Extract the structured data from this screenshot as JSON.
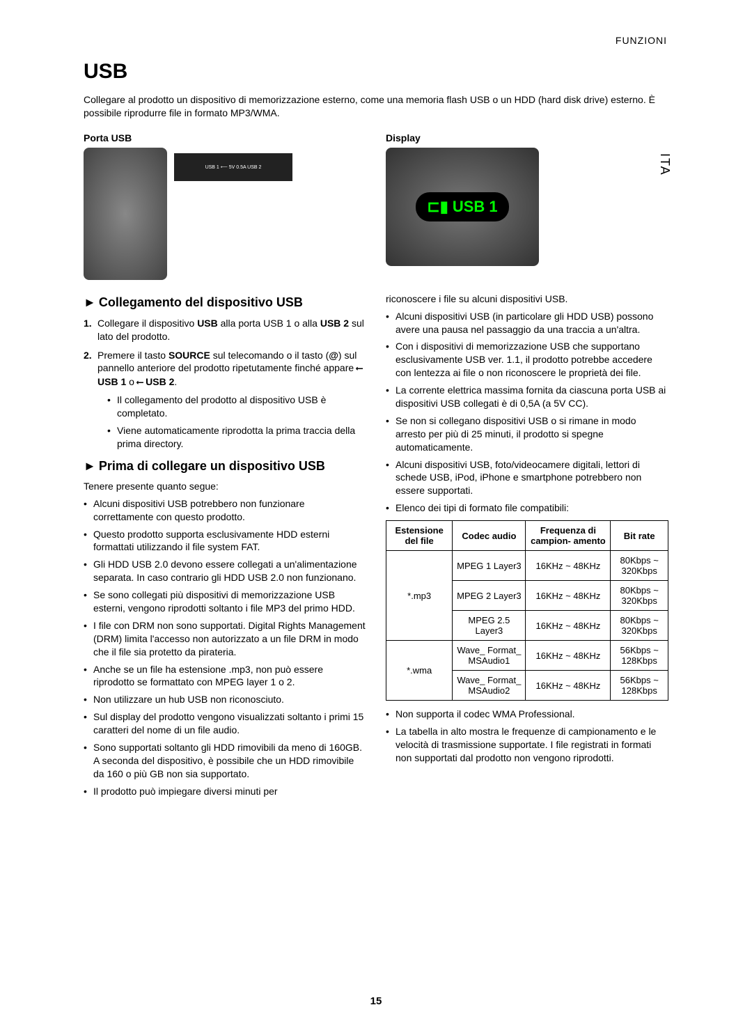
{
  "header": {
    "section_label": "FUNZIONI"
  },
  "side_tab": "ITA",
  "title": "USB",
  "intro": "Collegare al prodotto un dispositivo di memorizzazione esterno, come una memoria flash USB o un HDD (hard disk drive) esterno. È possibile riprodurre file in formato MP3/WMA.",
  "figures": {
    "left_label": "Porta USB",
    "left_panel_text": "USB 1 ⟵ 5V 0.5A  USB 2",
    "right_label": "Display",
    "display_text": "USB 1"
  },
  "section_connect": {
    "title": "Collegamento del dispositivo USB",
    "items": [
      {
        "num": "1.",
        "html": "Collegare il dispositivo <b>USB</b> alla porta USB 1 o alla <b>USB 2</b> sul lato del prodotto."
      },
      {
        "num": "2.",
        "html": "Premere il tasto <b>SOURCE</b> sul telecomando o il tasto (<b>@</b>) sul pannello anteriore del prodotto ripetutamente finché appare <span class='usb-icon'>⟵</span> <b>USB 1</b> o <span class='usb-icon'>⟵</span> <b>USB 2</b>."
      }
    ],
    "sub_items": [
      "Il collegamento del prodotto al dispositivo USB è completato.",
      "Viene automaticamente riprodotta la prima traccia della prima directory."
    ]
  },
  "section_before": {
    "title": "Prima di collegare un dispositivo USB",
    "lead": "Tenere presente quanto segue:",
    "bullets_left": [
      "Alcuni dispositivi USB potrebbero non funzionare correttamente con questo prodotto.",
      "Questo prodotto supporta esclusivamente HDD esterni formattati utilizzando il file system FAT.",
      "Gli HDD USB 2.0 devono essere collegati a un'alimentazione separata. In caso contrario gli HDD USB 2.0 non funzionano.",
      "Se sono collegati più dispositivi di memorizzazione USB esterni, vengono riprodotti soltanto i file MP3 del primo HDD.",
      "I file con DRM non sono supportati. Digital Rights Management (DRM) limita l'accesso non autorizzato a un file DRM in modo che il file sia protetto da pirateria.",
      "Anche se un file ha estensione .mp3, non può essere riprodotto se formattato con MPEG layer 1 o 2.",
      "Non utilizzare un hub USB non riconosciuto.",
      "Sul display del prodotto vengono visualizzati soltanto i primi 15 caratteri del nome di un file audio.",
      "Sono supportati soltanto gli HDD rimovibili da meno di 160GB. A seconda del dispositivo, è possibile che un HDD rimovibile da 160 o più GB non sia supportato.",
      "Il prodotto può impiegare diversi minuti per"
    ],
    "bullets_right_top": [
      "riconoscere i file su alcuni dispositivi USB.",
      "Alcuni dispositivi USB (in particolare gli HDD USB) possono avere una pausa nel passaggio da una traccia a un'altra.",
      "Con i dispositivi di memorizzazione USB che supportano esclusivamente USB ver. 1.1, il prodotto potrebbe accedere con lentezza ai file o non riconoscere le proprietà dei file.",
      "La corrente elettrica massima fornita da ciascuna porta USB ai dispositivi USB collegati è di 0,5A (a 5V CC).",
      "Se non si collegano dispositivi USB o si rimane in modo arresto per più di 25 minuti, il prodotto si spegne automaticamente.",
      "Alcuni dispositivi USB, foto/videocamere digitali, lettori di schede USB, iPod, iPhone e smartphone potrebbero non essere supportati.",
      "Elenco dei tipi di formato file compatibili:"
    ],
    "bullets_right_bottom": [
      "Non supporta il codec WMA Professional.",
      "La tabella in alto mostra le frequenze di campionamento e le velocità di trasmissione supportate. I file registrati in formati non supportati dal prodotto non vengono riprodotti."
    ]
  },
  "table": {
    "headers": [
      "Estensione del file",
      "Codec audio",
      "Frequenza di campion- amento",
      "Bit rate"
    ],
    "rows": [
      {
        "ext": "*.mp3",
        "codec": "MPEG 1 Layer3",
        "freq": "16KHz ~ 48KHz",
        "bitrate": "80Kbps ~ 320Kbps"
      },
      {
        "ext": "",
        "codec": "MPEG 2 Layer3",
        "freq": "16KHz ~ 48KHz",
        "bitrate": "80Kbps ~ 320Kbps"
      },
      {
        "ext": "",
        "codec": "MPEG 2.5 Layer3",
        "freq": "16KHz ~ 48KHz",
        "bitrate": "80Kbps ~ 320Kbps"
      },
      {
        "ext": "*.wma",
        "codec": "Wave_ Format_ MSAudio1",
        "freq": "16KHz ~ 48KHz",
        "bitrate": "56Kbps ~ 128Kbps"
      },
      {
        "ext": "",
        "codec": "Wave_ Format_ MSAudio2",
        "freq": "16KHz ~ 48KHz",
        "bitrate": "56Kbps ~ 128Kbps"
      }
    ]
  },
  "page_number": "15"
}
